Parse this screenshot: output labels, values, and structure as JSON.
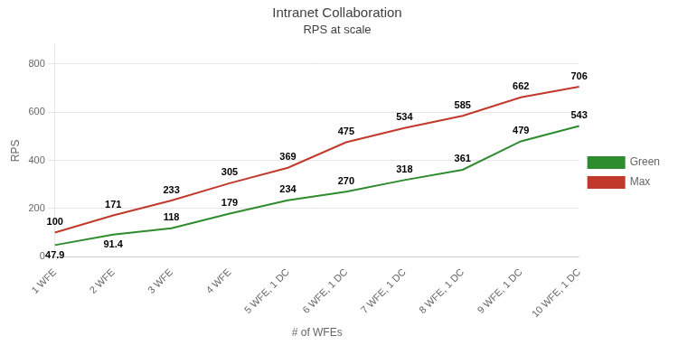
{
  "chart_data": {
    "type": "line",
    "title": "Intranet Collaboration",
    "subtitle": "RPS at scale",
    "x_label": "# of WFEs",
    "y_label": "RPS",
    "categories": [
      "1 WFE",
      "2 WFE",
      "3 WFE",
      "4 WFE",
      "5 WFE, 1 DC",
      "6 WFE, 1 DC",
      "7 WFE, 1 DC",
      "8 WFE, 1 DC",
      "9 WFE, 1 DC",
      "10 WFE, 1 DC"
    ],
    "series": [
      {
        "name": "Green",
        "color": "#2e8b2e",
        "values": [
          47.9,
          91.4,
          118,
          179,
          234,
          270,
          318,
          361,
          479,
          543
        ]
      },
      {
        "name": "Max",
        "color": "#c0392b",
        "values": [
          100,
          171,
          233,
          305,
          369,
          475,
          534,
          585,
          662,
          706
        ]
      }
    ],
    "ylim": [
      0,
      880
    ],
    "yticks": [
      0,
      200,
      400,
      600,
      800
    ],
    "grid": true,
    "legend": "right",
    "data_labels": true,
    "marker": "none"
  }
}
